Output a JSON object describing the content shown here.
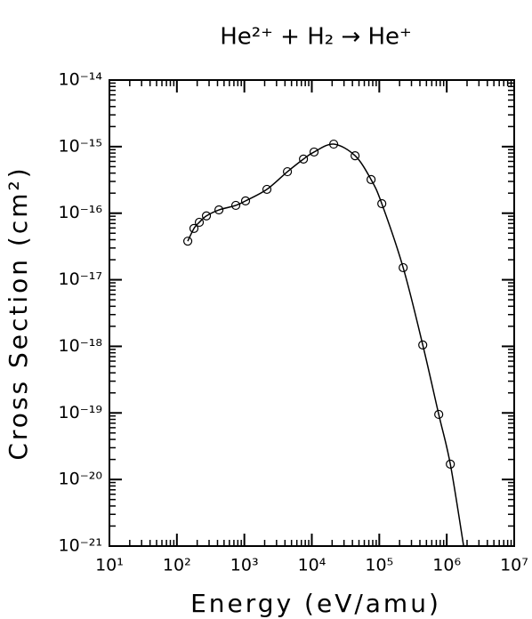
{
  "chart_data": {
    "type": "scatter",
    "title": "He²⁺ + H₂ → He⁺",
    "xlabel": "Energy (eV/amu)",
    "ylabel": "Cross Section (cm²)",
    "log_x": true,
    "log_y": true,
    "color": "#000000",
    "xlim": [
      10,
      10000000
    ],
    "ylim": [
      1e-21,
      1e-14
    ],
    "xticks": [
      {
        "value": 10,
        "label": "10¹"
      },
      {
        "value": 100,
        "label": "10²"
      },
      {
        "value": 1000,
        "label": "10³"
      },
      {
        "value": 10000,
        "label": "10⁴"
      },
      {
        "value": 100000,
        "label": "10⁵"
      },
      {
        "value": 1000000,
        "label": "10⁶"
      },
      {
        "value": 10000000,
        "label": "10⁷"
      }
    ],
    "yticks": [
      {
        "value": 1e-21,
        "label": "10⁻²¹"
      },
      {
        "value": 1e-20,
        "label": "10⁻²⁰"
      },
      {
        "value": 1e-19,
        "label": "10⁻¹⁹"
      },
      {
        "value": 1e-18,
        "label": "10⁻¹⁸"
      },
      {
        "value": 1e-17,
        "label": "10⁻¹⁷"
      },
      {
        "value": 1e-16,
        "label": "10⁻¹⁶"
      },
      {
        "value": 1e-15,
        "label": "10⁻¹⁵"
      },
      {
        "value": 1e-14,
        "label": "10⁻¹⁴"
      }
    ],
    "series": [
      {
        "style": "markers",
        "x": [
          145,
          179,
          215,
          274,
          420,
          747,
          1042,
          2160,
          4350,
          7520,
          10800,
          21100,
          43800,
          75600,
          109000,
          226000,
          441000,
          761000,
          1130000
        ],
        "values": [
          3.8e-17,
          5.9e-17,
          7.3e-17,
          9.1e-17,
          1.12e-16,
          1.31e-16,
          1.53e-16,
          2.28e-16,
          4.2e-16,
          6.5e-16,
          8.3e-16,
          1.09e-15,
          7.3e-16,
          3.2e-16,
          1.39e-16,
          1.52e-17,
          1.05e-18,
          9.5e-20,
          1.7e-20
        ]
      },
      {
        "style": "line",
        "x": [
          145,
          179,
          215,
          274,
          420,
          747,
          1042,
          2160,
          4350,
          7520,
          10800,
          21100,
          43800,
          75600,
          109000,
          226000,
          441000,
          761000,
          1130000,
          1780000
        ],
        "values": [
          3.8e-17,
          5.9e-17,
          7.3e-17,
          9.1e-17,
          1.12e-16,
          1.31e-16,
          1.53e-16,
          2.28e-16,
          4.2e-16,
          6.5e-16,
          8.3e-16,
          1.09e-15,
          7.3e-16,
          3.2e-16,
          1.39e-16,
          1.52e-17,
          1.05e-18,
          9.5e-20,
          1.7e-20,
          1e-21
        ]
      }
    ]
  }
}
